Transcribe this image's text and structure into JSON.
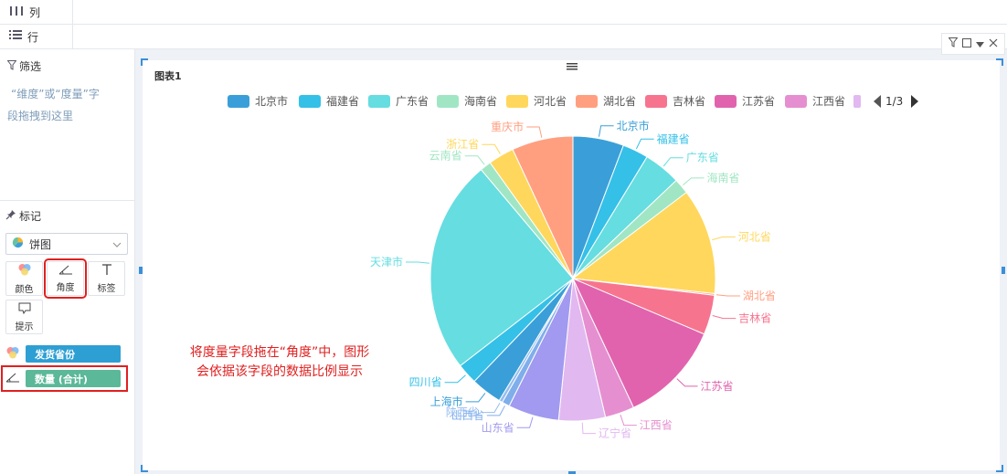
{
  "shelves": {
    "columns": {
      "icon": "columns-icon",
      "label": "列"
    },
    "rows": {
      "icon": "rows-icon",
      "label": "行"
    }
  },
  "filter": {
    "title": "筛选",
    "hint_line1": "“维度”或“度量”字",
    "hint_line2": "段拖拽到这里"
  },
  "marks": {
    "title": "标记",
    "chart_type": "饼图",
    "buttons": [
      {
        "icon": "color-icon",
        "label": "颜色"
      },
      {
        "icon": "angle-icon",
        "label": "角度"
      },
      {
        "icon": "text-icon",
        "label": "标签"
      },
      {
        "icon": "tooltip-icon",
        "label": "提示"
      }
    ],
    "fields": [
      {
        "icon": "color-icon",
        "label": "发货省份",
        "color": "#2e9fd3"
      },
      {
        "icon": "angle-icon",
        "label": "数量 (合计)",
        "color": "#5bb899"
      }
    ]
  },
  "chart": {
    "title": "图表1",
    "legend_page": "1/3",
    "annotation_line1": "将度量字段拖在“角度”中，图形",
    "annotation_line2": "会依据该字段的数据比例显示"
  },
  "chart_data": {
    "type": "pie",
    "title": "图表1",
    "legend": [
      "北京市",
      "福建省",
      "广东省",
      "海南省",
      "河北省",
      "湖北省",
      "吉林省",
      "江苏省",
      "江西省"
    ],
    "slices": [
      {
        "label": "北京市",
        "value": 5.9,
        "color": "#3a9fd8"
      },
      {
        "label": "福建省",
        "value": 3.0,
        "color": "#35c0e8"
      },
      {
        "label": "广东省",
        "value": 4.3,
        "color": "#66dde0"
      },
      {
        "label": "海南省",
        "value": 1.8,
        "color": "#a1e6c4"
      },
      {
        "label": "河北省",
        "value": 12.3,
        "color": "#ffd75c"
      },
      {
        "label": "湖北省",
        "value": 0.2,
        "color": "#ff9f80"
      },
      {
        "label": "吉林省",
        "value": 4.6,
        "color": "#f7748f"
      },
      {
        "label": "江苏省",
        "value": 11.9,
        "color": "#e163ae"
      },
      {
        "label": "江西省",
        "value": 3.4,
        "color": "#e58fd0"
      },
      {
        "label": "辽宁省",
        "value": 5.4,
        "color": "#e2b8f0"
      },
      {
        "label": "山东省",
        "value": 5.9,
        "color": "#a19af0"
      },
      {
        "label": "山西省",
        "value": 0.9,
        "color": "#7faeeb"
      },
      {
        "label": "陕西省",
        "value": 0.4,
        "color": "#97bdf0"
      },
      {
        "label": "上海市",
        "value": 3.6,
        "color": "#3a9fd8"
      },
      {
        "label": "四川省",
        "value": 2.4,
        "color": "#35c0e8"
      },
      {
        "label": "天津市",
        "value": 24.9,
        "color": "#66dde0"
      },
      {
        "label": "云南省",
        "value": 1.3,
        "color": "#a1e6c4"
      },
      {
        "label": "浙江省",
        "value": 3.0,
        "color": "#ffd75c"
      },
      {
        "label": "重庆市",
        "value": 7.1,
        "color": "#ff9f80"
      }
    ]
  }
}
